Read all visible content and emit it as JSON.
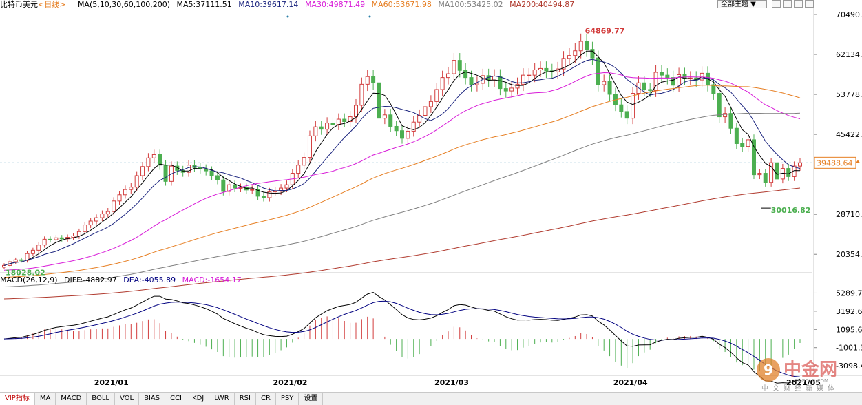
{
  "legend": {
    "symbol": "比特币美元",
    "period": "<日线>",
    "ma_params": "MA(5,10,30,60,100,200)",
    "ma5": "MA5:37111.51",
    "ma10": "MA10:39617.14",
    "ma30": "MA30:49871.49",
    "ma60": "MA60:53671.98",
    "ma100": "MA100:53425.02",
    "ma200": "MA200:40494.87"
  },
  "macd_legend": {
    "params": "MACD(26,12,9)",
    "diff": "DIFF:-4882.97",
    "dea": "DEA:-4055.89",
    "macd": "MACD:-1654.17"
  },
  "theme_button": "全部主题",
  "toolbar": [
    "VIP指标",
    "MA",
    "MACD",
    "BOLL",
    "VOL",
    "BIAS",
    "CCI",
    "KDJ",
    "LWR",
    "RSI",
    "CR",
    "PSY",
    "设置"
  ],
  "watermark": {
    "main": "中金网",
    "url": "CNGOLD.COM",
    "sub": "中文财经新媒体"
  },
  "colors": {
    "up": "#d23c3c",
    "down": "#4caf50",
    "ma5": "#000000",
    "ma10": "#1a237e",
    "ma30": "#d81bd8",
    "ma60": "#e67e22",
    "ma100": "#7f7f7f",
    "ma200": "#b03a2e",
    "diff": "#000000",
    "dea": "#000080"
  },
  "chart_data": [
    {
      "type": "candlestick",
      "title": "比特币美元 <日线>",
      "x_labels": [
        "2021/01",
        "2021/02",
        "2021/03",
        "2021/04",
        "2021/05"
      ],
      "y_ticks": [
        70490.78,
        62134.79,
        53778.79,
        45422.8,
        28710.82,
        20354.83
      ],
      "ylim": [
        16500,
        71500
      ],
      "current_price": 39488.64,
      "annotations": [
        {
          "label": "64869.77",
          "kind": "high"
        },
        {
          "label": "30016.82",
          "kind": "low"
        },
        {
          "label": "18028.02",
          "kind": "start"
        }
      ],
      "close": [
        18028,
        18800,
        19200,
        19100,
        20500,
        21200,
        22300,
        23500,
        23400,
        23800,
        23600,
        23900,
        24200,
        25100,
        26500,
        27300,
        28000,
        28800,
        29300,
        31500,
        32800,
        33900,
        34400,
        36800,
        38700,
        40500,
        41200,
        39000,
        35600,
        38800,
        37900,
        37500,
        39000,
        38500,
        38200,
        37800,
        36800,
        35900,
        33500,
        34900,
        34200,
        34300,
        33800,
        33900,
        32500,
        32200,
        33400,
        33600,
        34200,
        34900,
        37300,
        39000,
        40600,
        45100,
        47000,
        46500,
        47800,
        47500,
        48600,
        48100,
        49100,
        51500,
        55900,
        57500,
        56200,
        48800,
        49500,
        47100,
        46200,
        44600,
        46100,
        48000,
        49400,
        51200,
        52300,
        54800,
        57300,
        58100,
        60900,
        58800,
        57300,
        55800,
        56100,
        57700,
        56800,
        57600,
        55000,
        54500,
        55100,
        55900,
        57800,
        57800,
        58900,
        59200,
        58700,
        58500,
        59100,
        61300,
        61900,
        62900,
        64869,
        63200,
        61400,
        55800,
        56500,
        53800,
        51600,
        50200,
        48800,
        54000,
        56200,
        54800,
        54600,
        58400,
        57800,
        57300,
        55700,
        57900,
        57100,
        57200,
        56800,
        58200,
        55800,
        54000,
        49100,
        49800,
        46700,
        43500,
        42900,
        44300,
        37000,
        37300,
        35400,
        39500,
        36100,
        38300,
        36600,
        38800,
        39488
      ],
      "series_ma": [
        "MA5",
        "MA10",
        "MA30",
        "MA60",
        "MA100",
        "MA200"
      ]
    },
    {
      "type": "macd",
      "title": "MACD(26,12,9)",
      "y_ticks": [
        5289.7,
        3192.67,
        1095.65,
        -1001.37,
        -3098.4
      ],
      "ylim": [
        -4200,
        6200
      ],
      "diff_last": -4882.97,
      "dea_last": -4055.89,
      "macd_last": -1654.17
    }
  ]
}
